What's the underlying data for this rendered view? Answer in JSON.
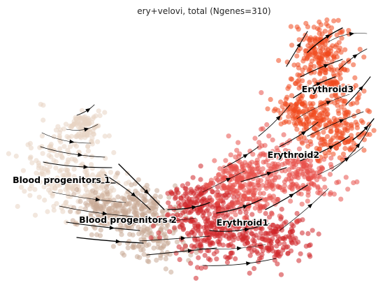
{
  "chart_data": {
    "type": "scatter",
    "title": "ery+velovi, total (Ngenes=310)",
    "xlabel": "",
    "ylabel": "",
    "axes_visible": false,
    "grid": false,
    "legend": "on data",
    "overlay": "velocity streamlines with arrowheads",
    "clusters": [
      {
        "name": "Blood progenitors 1",
        "color": "#e8d3c2"
      },
      {
        "name": "Blood progenitors 2",
        "color": "#c8a995"
      },
      {
        "name": "Erythroid1",
        "color": "#d0262a"
      },
      {
        "name": "Erythroid2",
        "color": "#e7504a"
      },
      {
        "name": "Erythroid3",
        "color": "#f04a1f"
      }
    ]
  }
}
